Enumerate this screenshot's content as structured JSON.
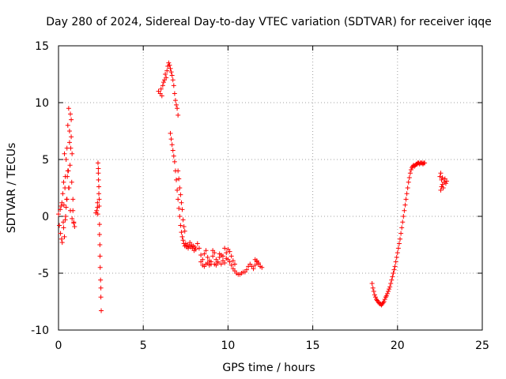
{
  "chart_data": {
    "type": "scatter",
    "title": "Day 280 of 2024, Sidereal Day-to-day VTEC variation (SDTVAR) for receiver iqqe",
    "xlabel": "GPS time / hours",
    "ylabel": "SDTVAR / TECUs",
    "xlim": [
      0,
      25
    ],
    "ylim": [
      -10,
      15
    ],
    "xticks": [
      0,
      5,
      10,
      15,
      20,
      25
    ],
    "yticks": [
      -10,
      -5,
      0,
      5,
      10,
      15
    ],
    "xtick_labels": [
      "0",
      "5",
      "10",
      "15",
      "20",
      "25"
    ],
    "ytick_labels": [
      "-10",
      "-5",
      "0",
      "5",
      "10",
      "15"
    ],
    "grid": true,
    "marker": "+",
    "color": "#ff0000",
    "series": [
      {
        "name": "SDTVAR iqqe",
        "segments": [
          {
            "x": [
              0.0,
              0.05,
              0.1,
              0.12,
              0.15,
              0.18,
              0.2,
              0.22,
              0.25,
              0.28,
              0.3,
              0.32,
              0.35,
              0.38,
              0.4,
              0.42,
              0.45,
              0.48,
              0.5,
              0.52,
              0.55,
              0.58,
              0.6,
              0.62,
              0.65,
              0.68,
              0.7,
              0.72,
              0.75,
              0.78,
              0.8,
              0.85,
              0.9,
              0.95
            ],
            "y": [
              0.2,
              -0.8,
              0.6,
              -1.5,
              0.9,
              -2.0,
              1.2,
              -2.3,
              2.0,
              -0.5,
              3.0,
              1.0,
              5.5,
              2.5,
              3.5,
              0.0,
              5.0,
              1.5,
              6.0,
              3.5,
              8.0,
              4.0,
              9.5,
              2.5,
              7.5,
              4.5,
              9.0,
              6.0,
              7.0,
              3.0,
              5.5,
              0.5,
              -0.5,
              -0.9
            ]
          },
          {
            "x": [
              0.3,
              0.4,
              0.5,
              0.6,
              0.7,
              0.8,
              0.9,
              0.35,
              0.45,
              0.55,
              0.65,
              0.75,
              0.85
            ],
            "y": [
              -1.0,
              -0.3,
              1.5,
              2.5,
              0.5,
              -0.2,
              -0.6,
              -1.8,
              0.8,
              4.0,
              6.5,
              8.5,
              1.5
            ]
          },
          {
            "x": [
              2.2,
              2.25,
              2.3,
              2.3,
              2.32,
              2.33,
              2.35,
              2.35,
              2.36,
              2.38,
              2.38,
              2.4,
              2.4,
              2.42,
              2.42,
              2.44,
              2.45,
              2.46,
              2.48,
              2.5,
              2.5,
              2.52
            ],
            "y": [
              0.3,
              0.5,
              0.8,
              1.2,
              0.2,
              4.7,
              4.2,
              3.8,
              3.2,
              2.6,
              2.0,
              1.5,
              0.9,
              -0.7,
              -1.6,
              -2.5,
              -3.5,
              -4.5,
              -5.6,
              -6.3,
              -7.1,
              -8.3
            ]
          },
          {
            "x": [
              5.9,
              6.0,
              6.05,
              6.1,
              6.15,
              6.2,
              6.25,
              6.3,
              6.35,
              6.4,
              6.45,
              6.5,
              6.55,
              6.6,
              6.65,
              6.7,
              6.75,
              6.8,
              6.85,
              6.9,
              6.95,
              7.0,
              7.05
            ],
            "y": [
              11.0,
              10.8,
              11.2,
              10.6,
              11.5,
              11.8,
              12.0,
              12.5,
              12.2,
              12.8,
              13.2,
              13.5,
              13.3,
              13.0,
              12.7,
              12.4,
              12.0,
              11.5,
              10.8,
              10.2,
              9.8,
              9.5,
              8.9
            ]
          },
          {
            "x": [
              6.6,
              6.65,
              6.7,
              6.75,
              6.8,
              6.85,
              6.9,
              6.95,
              7.0,
              7.05,
              7.1,
              7.15,
              7.2,
              7.25,
              7.3,
              7.35,
              7.4,
              7.45,
              7.5,
              7.55,
              7.6,
              7.65,
              7.7,
              7.75,
              7.8,
              7.85,
              7.9,
              7.95,
              8.0,
              8.05,
              8.1
            ],
            "y": [
              7.3,
              6.8,
              6.3,
              5.8,
              5.3,
              4.8,
              4.0,
              3.2,
              2.3,
              1.5,
              0.7,
              0.0,
              -0.8,
              -1.4,
              -1.8,
              -2.1,
              -2.4,
              -2.6,
              -2.4,
              -2.7,
              -2.5,
              -2.8,
              -2.6,
              -2.3,
              -2.7,
              -2.5,
              -2.8,
              -2.6,
              -3.0,
              -2.7,
              -2.9
            ]
          },
          {
            "x": [
              7.05,
              7.1,
              7.15,
              7.2,
              7.25,
              7.3,
              7.35,
              7.4,
              7.45
            ],
            "y": [
              4.0,
              3.3,
              2.5,
              1.9,
              1.2,
              0.6,
              -0.3,
              -0.9,
              -1.3
            ]
          },
          {
            "x": [
              8.2,
              8.3,
              8.4,
              8.5,
              8.6,
              8.7,
              8.8,
              8.9,
              9.0,
              9.1,
              9.2,
              9.3,
              9.4,
              9.5,
              9.6,
              9.7,
              9.8,
              9.9,
              10.0,
              10.1,
              10.2,
              10.3,
              10.4,
              10.5,
              10.6,
              10.7,
              10.8,
              10.9,
              11.0,
              11.1,
              11.2,
              11.3,
              11.4,
              11.5,
              11.6,
              11.7,
              11.8,
              11.9,
              12.0
            ],
            "y": [
              -2.4,
              -2.8,
              -3.4,
              -3.8,
              -3.3,
              -3.0,
              -3.6,
              -3.9,
              -4.0,
              -3.5,
              -3.2,
              -3.8,
              -4.0,
              -3.6,
              -3.4,
              -3.9,
              -4.1,
              -3.7,
              -3.8,
              -4.0,
              -4.3,
              -4.6,
              -4.8,
              -5.0,
              -5.1,
              -5.1,
              -5.0,
              -4.9,
              -4.9,
              -4.7,
              -4.4,
              -4.2,
              -4.4,
              -4.6,
              -4.3,
              -4.0,
              -4.2,
              -4.4,
              -4.5
            ]
          },
          {
            "x": [
              8.4,
              8.5,
              8.6,
              8.7,
              8.8,
              8.9,
              9.0,
              9.1,
              9.2,
              9.3,
              9.4,
              9.5,
              9.6,
              9.7,
              9.8,
              9.9,
              10.0,
              10.1,
              10.2,
              10.3,
              10.4,
              11.6,
              11.7,
              11.8
            ],
            "y": [
              -4.0,
              -4.3,
              -4.4,
              -4.2,
              -4.1,
              -4.3,
              -4.2,
              -3.0,
              -4.2,
              -4.3,
              -4.1,
              -3.3,
              -4.2,
              -3.5,
              -2.8,
              -3.2,
              -2.9,
              -3.1,
              -3.5,
              -3.9,
              -4.2,
              -3.8,
              -3.9,
              -4.1
            ]
          },
          {
            "x": [
              18.5,
              18.55,
              18.6,
              18.65,
              18.7,
              18.75,
              18.8,
              18.85,
              18.9,
              18.95,
              19.0,
              19.05,
              19.1,
              19.15,
              19.2,
              19.25,
              19.3,
              19.35,
              19.4,
              19.45,
              19.5,
              19.55,
              19.6,
              19.65,
              19.7,
              19.75,
              19.8,
              19.85,
              19.9,
              19.95,
              20.0,
              20.05,
              20.1,
              20.15,
              20.2,
              20.25,
              20.3,
              20.35,
              20.4,
              20.45,
              20.5,
              20.55,
              20.6,
              20.65,
              20.7,
              20.75,
              20.8,
              20.85,
              20.9,
              20.95,
              21.0,
              21.05,
              21.1,
              21.15,
              21.2,
              21.25,
              21.3,
              21.35,
              21.4,
              21.45,
              21.5,
              21.55,
              21.6
            ],
            "y": [
              -5.9,
              -6.3,
              -6.6,
              -6.9,
              -7.1,
              -7.3,
              -7.4,
              -7.5,
              -7.6,
              -7.7,
              -7.7,
              -7.8,
              -7.7,
              -7.6,
              -7.5,
              -7.3,
              -7.1,
              -7.0,
              -6.8,
              -6.6,
              -6.4,
              -6.2,
              -5.9,
              -5.6,
              -5.3,
              -5.0,
              -4.7,
              -4.4,
              -4.0,
              -3.6,
              -3.2,
              -2.8,
              -2.4,
              -2.0,
              -1.5,
              -1.0,
              -0.5,
              0.0,
              0.5,
              1.0,
              1.5,
              2.0,
              2.5,
              3.0,
              3.4,
              3.8,
              4.1,
              4.3,
              4.4,
              4.5,
              4.4,
              4.5,
              4.6,
              4.6,
              4.7,
              4.7,
              4.6,
              4.7,
              4.7,
              4.7,
              4.6,
              4.7,
              4.7
            ]
          },
          {
            "x": [
              22.5,
              22.55,
              22.6,
              22.65,
              22.7,
              22.75,
              22.8,
              22.85,
              22.9,
              22.55,
              22.6,
              22.65
            ],
            "y": [
              3.5,
              3.8,
              3.2,
              2.8,
              2.5,
              3.0,
              3.3,
              2.9,
              3.1,
              2.3,
              2.6,
              3.4
            ]
          }
        ]
      }
    ]
  }
}
